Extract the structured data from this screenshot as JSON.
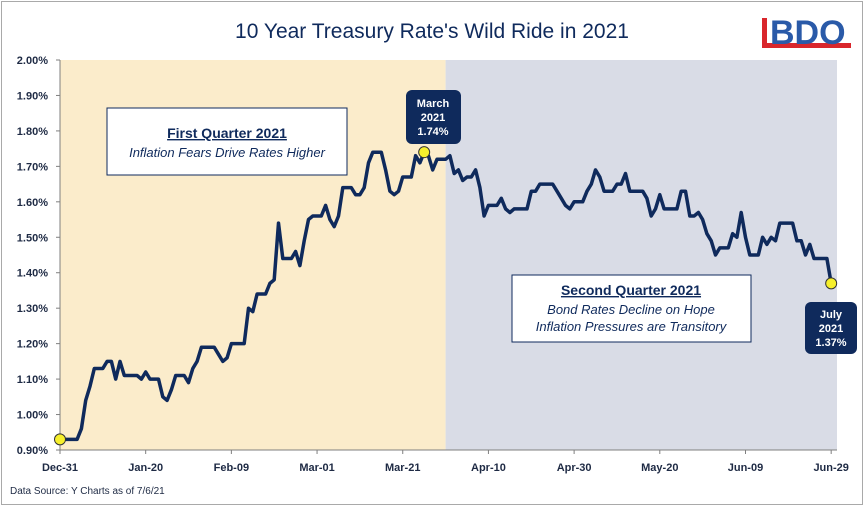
{
  "source_note": "Data Source: Y Charts as of 7/6/21",
  "logo": {
    "text": "BDO",
    "bar_color": "#d9262c",
    "text_color": "#2a5aa8"
  },
  "colors": {
    "q1_shade": "#fbeccb",
    "q2_shade": "#d9dce6",
    "line": "#0f2a5c",
    "marker": "#f6ef2c",
    "callout": "#0f2a5c"
  },
  "annotations": {
    "q1_box": {
      "heading": "First Quarter 2021",
      "text": "Inflation Fears Drive Rates Higher"
    },
    "q2_box": {
      "heading": "Second Quarter 2021",
      "line1": "Bond Rates Decline on Hope",
      "line2": "Inflation Pressures are Transitory"
    },
    "march_callout": {
      "line1": "March",
      "line2": "2021",
      "line3": "1.74%"
    },
    "july_callout": {
      "line1": "July",
      "line2": "2021",
      "line3": "1.37%"
    }
  },
  "chart_data": {
    "type": "line",
    "title": "10 Year Treasury Rate's Wild Ride in 2021",
    "xlabel": "",
    "ylabel": "",
    "ylim": [
      0.9,
      2.0
    ],
    "y_ticks": [
      "2.00%",
      "1.90%",
      "1.80%",
      "1.70%",
      "1.60%",
      "1.50%",
      "1.40%",
      "1.30%",
      "1.20%",
      "1.10%",
      "1.00%",
      "0.90%"
    ],
    "x_ticks": [
      "Dec-31",
      "Jan-20",
      "Feb-09",
      "Mar-01",
      "Mar-21",
      "Apr-10",
      "Apr-30",
      "May-20",
      "Jun-09",
      "Jun-29"
    ],
    "x_tick_days": [
      0,
      20,
      40,
      60,
      80,
      100,
      120,
      140,
      160,
      180
    ],
    "shaded_regions": [
      {
        "name": "First Quarter",
        "from": "Dec-31",
        "to": "Mar-31"
      },
      {
        "name": "Second Quarter",
        "from": "Mar-31",
        "to": "Jul-06"
      }
    ],
    "series": [
      {
        "values": [
          {
            "x": "Dec-31",
            "y": 0.93
          },
          {
            "x": "Jan-01",
            "y": 0.93
          },
          {
            "x": "Jan-02",
            "y": 0.93
          },
          {
            "x": "Jan-03",
            "y": 0.93
          },
          {
            "x": "Jan-04",
            "y": 0.93
          },
          {
            "x": "Jan-05",
            "y": 0.96
          },
          {
            "x": "Jan-06",
            "y": 1.04
          },
          {
            "x": "Jan-07",
            "y": 1.08
          },
          {
            "x": "Jan-08",
            "y": 1.13
          },
          {
            "x": "Jan-09",
            "y": 1.13
          },
          {
            "x": "Jan-10",
            "y": 1.13
          },
          {
            "x": "Jan-11",
            "y": 1.15
          },
          {
            "x": "Jan-12",
            "y": 1.15
          },
          {
            "x": "Jan-13",
            "y": 1.1
          },
          {
            "x": "Jan-14",
            "y": 1.15
          },
          {
            "x": "Jan-15",
            "y": 1.11
          },
          {
            "x": "Jan-16",
            "y": 1.11
          },
          {
            "x": "Jan-17",
            "y": 1.11
          },
          {
            "x": "Jan-18",
            "y": 1.11
          },
          {
            "x": "Jan-19",
            "y": 1.1
          },
          {
            "x": "Jan-20",
            "y": 1.12
          },
          {
            "x": "Jan-21",
            "y": 1.1
          },
          {
            "x": "Jan-22",
            "y": 1.1
          },
          {
            "x": "Jan-23",
            "y": 1.1
          },
          {
            "x": "Jan-24",
            "y": 1.05
          },
          {
            "x": "Jan-25",
            "y": 1.04
          },
          {
            "x": "Jan-26",
            "y": 1.07
          },
          {
            "x": "Jan-27",
            "y": 1.11
          },
          {
            "x": "Jan-28",
            "y": 1.11
          },
          {
            "x": "Jan-29",
            "y": 1.11
          },
          {
            "x": "Jan-30",
            "y": 1.09
          },
          {
            "x": "Jan-31",
            "y": 1.13
          },
          {
            "x": "Feb-01",
            "y": 1.15
          },
          {
            "x": "Feb-02",
            "y": 1.19
          },
          {
            "x": "Feb-03",
            "y": 1.19
          },
          {
            "x": "Feb-04",
            "y": 1.19
          },
          {
            "x": "Feb-05",
            "y": 1.19
          },
          {
            "x": "Feb-06",
            "y": 1.17
          },
          {
            "x": "Feb-07",
            "y": 1.15
          },
          {
            "x": "Feb-08",
            "y": 1.16
          },
          {
            "x": "Feb-09",
            "y": 1.2
          },
          {
            "x": "Feb-10",
            "y": 1.2
          },
          {
            "x": "Feb-11",
            "y": 1.2
          },
          {
            "x": "Feb-12",
            "y": 1.2
          },
          {
            "x": "Feb-13",
            "y": 1.3
          },
          {
            "x": "Feb-14",
            "y": 1.29
          },
          {
            "x": "Feb-15",
            "y": 1.34
          },
          {
            "x": "Feb-16",
            "y": 1.34
          },
          {
            "x": "Feb-17",
            "y": 1.34
          },
          {
            "x": "Feb-18",
            "y": 1.37
          },
          {
            "x": "Feb-19",
            "y": 1.38
          },
          {
            "x": "Feb-20",
            "y": 1.54
          },
          {
            "x": "Feb-21",
            "y": 1.44
          },
          {
            "x": "Feb-22",
            "y": 1.44
          },
          {
            "x": "Feb-23",
            "y": 1.44
          },
          {
            "x": "Feb-24",
            "y": 1.46
          },
          {
            "x": "Feb-25",
            "y": 1.42
          },
          {
            "x": "Feb-26",
            "y": 1.49
          },
          {
            "x": "Feb-27",
            "y": 1.55
          },
          {
            "x": "Feb-28",
            "y": 1.56
          },
          {
            "x": "Mar-01",
            "y": 1.56
          },
          {
            "x": "Mar-02",
            "y": 1.56
          },
          {
            "x": "Mar-03",
            "y": 1.59
          },
          {
            "x": "Mar-04",
            "y": 1.55
          },
          {
            "x": "Mar-05",
            "y": 1.53
          },
          {
            "x": "Mar-06",
            "y": 1.56
          },
          {
            "x": "Mar-07",
            "y": 1.64
          },
          {
            "x": "Mar-08",
            "y": 1.64
          },
          {
            "x": "Mar-09",
            "y": 1.64
          },
          {
            "x": "Mar-10",
            "y": 1.62
          },
          {
            "x": "Mar-11",
            "y": 1.62
          },
          {
            "x": "Mar-12",
            "y": 1.64
          },
          {
            "x": "Mar-13",
            "y": 1.71
          },
          {
            "x": "Mar-14",
            "y": 1.74
          },
          {
            "x": "Mar-15",
            "y": 1.74
          },
          {
            "x": "Mar-16",
            "y": 1.74
          },
          {
            "x": "Mar-17",
            "y": 1.69
          },
          {
            "x": "Mar-18",
            "y": 1.63
          },
          {
            "x": "Mar-19",
            "y": 1.62
          },
          {
            "x": "Mar-20",
            "y": 1.63
          },
          {
            "x": "Mar-21",
            "y": 1.67
          },
          {
            "x": "Mar-22",
            "y": 1.67
          },
          {
            "x": "Mar-23",
            "y": 1.67
          },
          {
            "x": "Mar-24",
            "y": 1.73
          },
          {
            "x": "Mar-25",
            "y": 1.71
          },
          {
            "x": "Mar-26",
            "y": 1.74
          },
          {
            "x": "Mar-27",
            "y": 1.73
          },
          {
            "x": "Mar-28",
            "y": 1.69
          },
          {
            "x": "Mar-29",
            "y": 1.72
          },
          {
            "x": "Mar-30",
            "y": 1.72
          },
          {
            "x": "Mar-31",
            "y": 1.72
          },
          {
            "x": "Apr-01",
            "y": 1.73
          },
          {
            "x": "Apr-02",
            "y": 1.68
          },
          {
            "x": "Apr-03",
            "y": 1.69
          },
          {
            "x": "Apr-04",
            "y": 1.66
          },
          {
            "x": "Apr-05",
            "y": 1.67
          },
          {
            "x": "Apr-06",
            "y": 1.67
          },
          {
            "x": "Apr-07",
            "y": 1.69
          },
          {
            "x": "Apr-08",
            "y": 1.64
          },
          {
            "x": "Apr-09",
            "y": 1.56
          },
          {
            "x": "Apr-10",
            "y": 1.59
          },
          {
            "x": "Apr-11",
            "y": 1.59
          },
          {
            "x": "Apr-12",
            "y": 1.59
          },
          {
            "x": "Apr-13",
            "y": 1.61
          },
          {
            "x": "Apr-14",
            "y": 1.58
          },
          {
            "x": "Apr-15",
            "y": 1.57
          },
          {
            "x": "Apr-16",
            "y": 1.58
          },
          {
            "x": "Apr-17",
            "y": 1.58
          },
          {
            "x": "Apr-18",
            "y": 1.58
          },
          {
            "x": "Apr-19",
            "y": 1.58
          },
          {
            "x": "Apr-20",
            "y": 1.63
          },
          {
            "x": "Apr-21",
            "y": 1.63
          },
          {
            "x": "Apr-22",
            "y": 1.65
          },
          {
            "x": "Apr-23",
            "y": 1.65
          },
          {
            "x": "Apr-24",
            "y": 1.65
          },
          {
            "x": "Apr-25",
            "y": 1.65
          },
          {
            "x": "Apr-26",
            "y": 1.63
          },
          {
            "x": "Apr-27",
            "y": 1.61
          },
          {
            "x": "Apr-28",
            "y": 1.59
          },
          {
            "x": "Apr-29",
            "y": 1.58
          },
          {
            "x": "Apr-30",
            "y": 1.6
          },
          {
            "x": "May-01",
            "y": 1.6
          },
          {
            "x": "May-02",
            "y": 1.6
          },
          {
            "x": "May-03",
            "y": 1.63
          },
          {
            "x": "May-04",
            "y": 1.65
          },
          {
            "x": "May-05",
            "y": 1.69
          },
          {
            "x": "May-06",
            "y": 1.67
          },
          {
            "x": "May-07",
            "y": 1.63
          },
          {
            "x": "May-08",
            "y": 1.63
          },
          {
            "x": "May-09",
            "y": 1.63
          },
          {
            "x": "May-10",
            "y": 1.65
          },
          {
            "x": "May-11",
            "y": 1.65
          },
          {
            "x": "May-12",
            "y": 1.68
          },
          {
            "x": "May-13",
            "y": 1.63
          },
          {
            "x": "May-14",
            "y": 1.63
          },
          {
            "x": "May-15",
            "y": 1.63
          },
          {
            "x": "May-16",
            "y": 1.63
          },
          {
            "x": "May-17",
            "y": 1.61
          },
          {
            "x": "May-18",
            "y": 1.56
          },
          {
            "x": "May-19",
            "y": 1.58
          },
          {
            "x": "May-20",
            "y": 1.62
          },
          {
            "x": "May-21",
            "y": 1.58
          },
          {
            "x": "May-22",
            "y": 1.58
          },
          {
            "x": "May-23",
            "y": 1.58
          },
          {
            "x": "May-24",
            "y": 1.58
          },
          {
            "x": "May-25",
            "y": 1.63
          },
          {
            "x": "May-26",
            "y": 1.63
          },
          {
            "x": "May-27",
            "y": 1.56
          },
          {
            "x": "May-28",
            "y": 1.56
          },
          {
            "x": "May-29",
            "y": 1.57
          },
          {
            "x": "May-30",
            "y": 1.55
          },
          {
            "x": "May-31",
            "y": 1.51
          },
          {
            "x": "Jun-01",
            "y": 1.49
          },
          {
            "x": "Jun-02",
            "y": 1.45
          },
          {
            "x": "Jun-03",
            "y": 1.47
          },
          {
            "x": "Jun-04",
            "y": 1.47
          },
          {
            "x": "Jun-05",
            "y": 1.47
          },
          {
            "x": "Jun-06",
            "y": 1.51
          },
          {
            "x": "Jun-07",
            "y": 1.5
          },
          {
            "x": "Jun-08",
            "y": 1.57
          },
          {
            "x": "Jun-09",
            "y": 1.5
          },
          {
            "x": "Jun-10",
            "y": 1.45
          },
          {
            "x": "Jun-11",
            "y": 1.45
          },
          {
            "x": "Jun-12",
            "y": 1.45
          },
          {
            "x": "Jun-13",
            "y": 1.5
          },
          {
            "x": "Jun-14",
            "y": 1.48
          },
          {
            "x": "Jun-15",
            "y": 1.5
          },
          {
            "x": "Jun-16",
            "y": 1.49
          },
          {
            "x": "Jun-17",
            "y": 1.54
          },
          {
            "x": "Jun-18",
            "y": 1.54
          },
          {
            "x": "Jun-19",
            "y": 1.54
          },
          {
            "x": "Jun-20",
            "y": 1.54
          },
          {
            "x": "Jun-21",
            "y": 1.49
          },
          {
            "x": "Jun-22",
            "y": 1.49
          },
          {
            "x": "Jun-23",
            "y": 1.45
          },
          {
            "x": "Jun-24",
            "y": 1.48
          },
          {
            "x": "Jun-25",
            "y": 1.44
          },
          {
            "x": "Jun-26",
            "y": 1.44
          },
          {
            "x": "Jun-27",
            "y": 1.44
          },
          {
            "x": "Jun-28",
            "y": 1.44
          },
          {
            "x": "Jun-29",
            "y": 1.37
          }
        ]
      }
    ],
    "highlighted_points": [
      {
        "x": "Dec-31",
        "y": 0.93
      },
      {
        "x": "Mar-26",
        "y": 1.74
      },
      {
        "x": "Jun-29",
        "y": 1.37
      }
    ],
    "grid": false,
    "legend": "none"
  }
}
